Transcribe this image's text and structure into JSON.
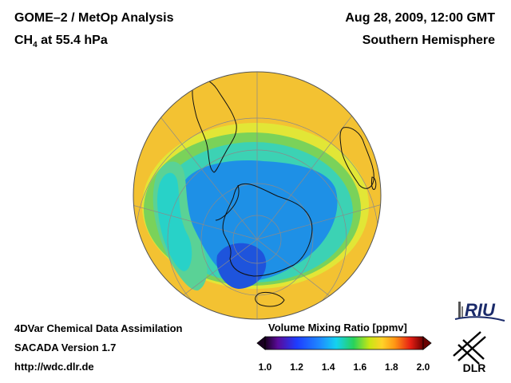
{
  "header": {
    "title_line1": "GOME–2 / MetOp Analysis",
    "species": "CH",
    "species_sub": "4",
    "level": " at 55.4 hPa",
    "date": "Aug 28, 2009, 12:00 GMT",
    "hemisphere": "Southern Hemisphere"
  },
  "footer": {
    "model": "4DVar Chemical Data Assimilation",
    "version": "SACADA Version 1.7",
    "url": "http://wdc.dlr.de"
  },
  "colorbar": {
    "title": "Volume Mixing Ratio [ppmv]",
    "ticks": [
      "1.0",
      "1.2",
      "1.4",
      "1.6",
      "1.8",
      "2.0"
    ],
    "colors": {
      "c0": "#1a0020",
      "c1": "#5a0a9a",
      "c2": "#1e3cff",
      "c3": "#1e8cff",
      "c4": "#14d2f0",
      "c5": "#28d25a",
      "c6": "#c8e614",
      "c7": "#ffd228",
      "c8": "#ff9614",
      "c9": "#e61e14",
      "c10": "#6a0000"
    }
  },
  "logos": {
    "riu": "RIU",
    "dlr": "DLR"
  },
  "map": {
    "colors": {
      "outer_band": "#f2c030",
      "yellow_band": "#e6e632",
      "green_band": "#5ad26e",
      "cyan_band": "#28d2d2",
      "vortex": "#1e90e6",
      "vortex_core": "#1e50dc"
    }
  }
}
